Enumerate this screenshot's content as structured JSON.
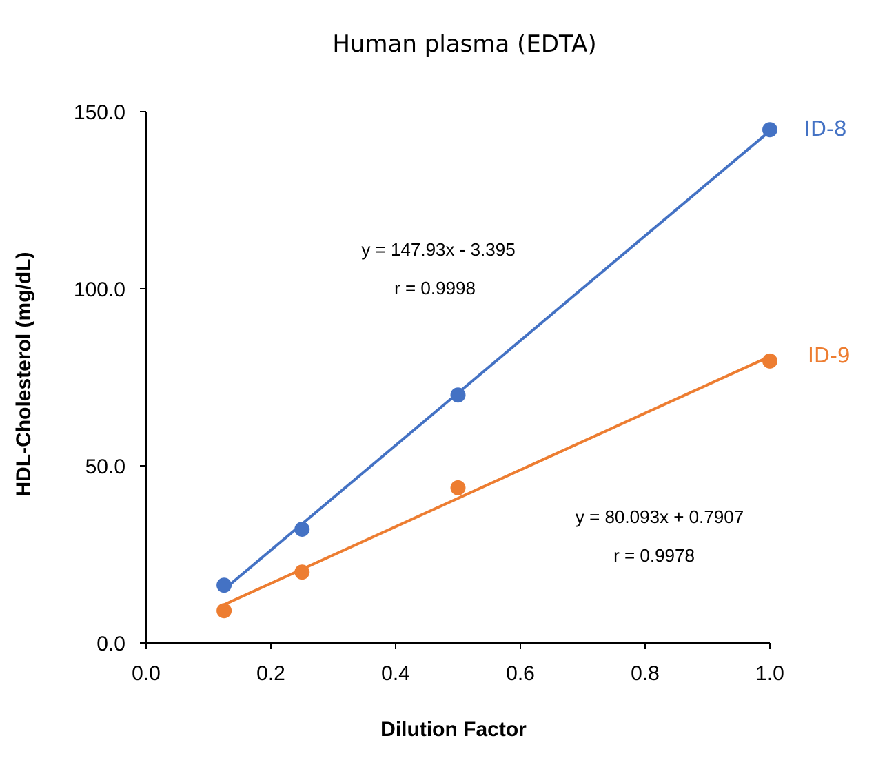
{
  "chart_data": {
    "type": "scatter",
    "title": "Human plasma (EDTA)",
    "xlabel": "Dilution Factor",
    "ylabel": "HDL-Cholesterol (mg/dL)",
    "xlim": [
      0,
      1.0
    ],
    "ylim": [
      0,
      150
    ],
    "x_ticks": [
      "0.0",
      "0.2",
      "0.4",
      "0.6",
      "0.8",
      "1.0"
    ],
    "y_ticks": [
      "0.0",
      "50.0",
      "100.0",
      "150.0"
    ],
    "grid": false,
    "legend": "none",
    "series": [
      {
        "name": "ID-8",
        "color": "#4472C4",
        "x": [
          0.125,
          0.25,
          0.5,
          1.0
        ],
        "y": [
          16.3,
          32.1,
          70.0,
          144.9
        ],
        "trendline": {
          "slope": 147.93,
          "intercept": -3.395
        },
        "equation": "y = 147.93x - 3.395",
        "r": "r = 0.9998"
      },
      {
        "name": "ID-9",
        "color": "#ED7D31",
        "x": [
          0.125,
          0.25,
          0.5,
          1.0
        ],
        "y": [
          9.1,
          20.0,
          43.8,
          79.6
        ],
        "trendline": {
          "slope": 80.093,
          "intercept": 0.7907
        },
        "equation": "y = 80.093x + 0.7907",
        "r": "r = 0.9978"
      }
    ]
  }
}
